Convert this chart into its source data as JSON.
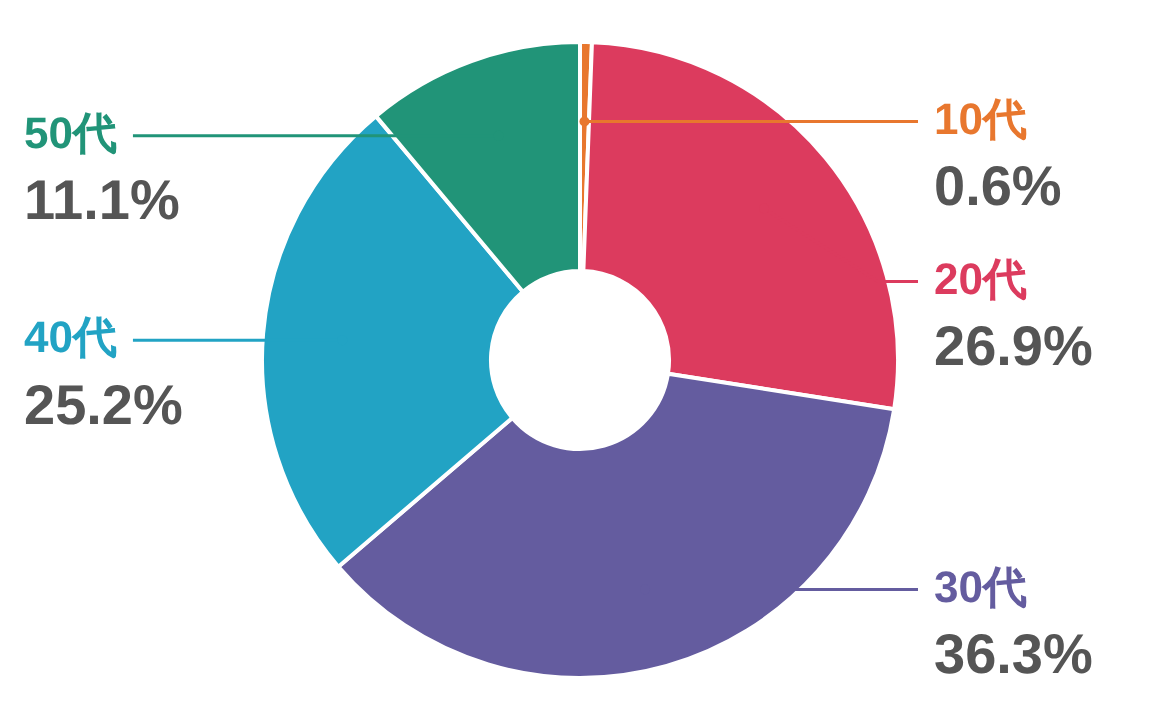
{
  "chart_data": {
    "type": "donut",
    "categories": [
      "10代",
      "20代",
      "30代",
      "40代",
      "50代"
    ],
    "values": [
      0.6,
      26.9,
      36.3,
      25.2,
      11.1
    ],
    "value_labels": [
      "0.6%",
      "26.9%",
      "36.3%",
      "25.2%",
      "11.1%"
    ],
    "colors": [
      "#e8772e",
      "#dc3b5e",
      "#645c9f",
      "#22a3c4",
      "#219478"
    ],
    "legend": false
  }
}
